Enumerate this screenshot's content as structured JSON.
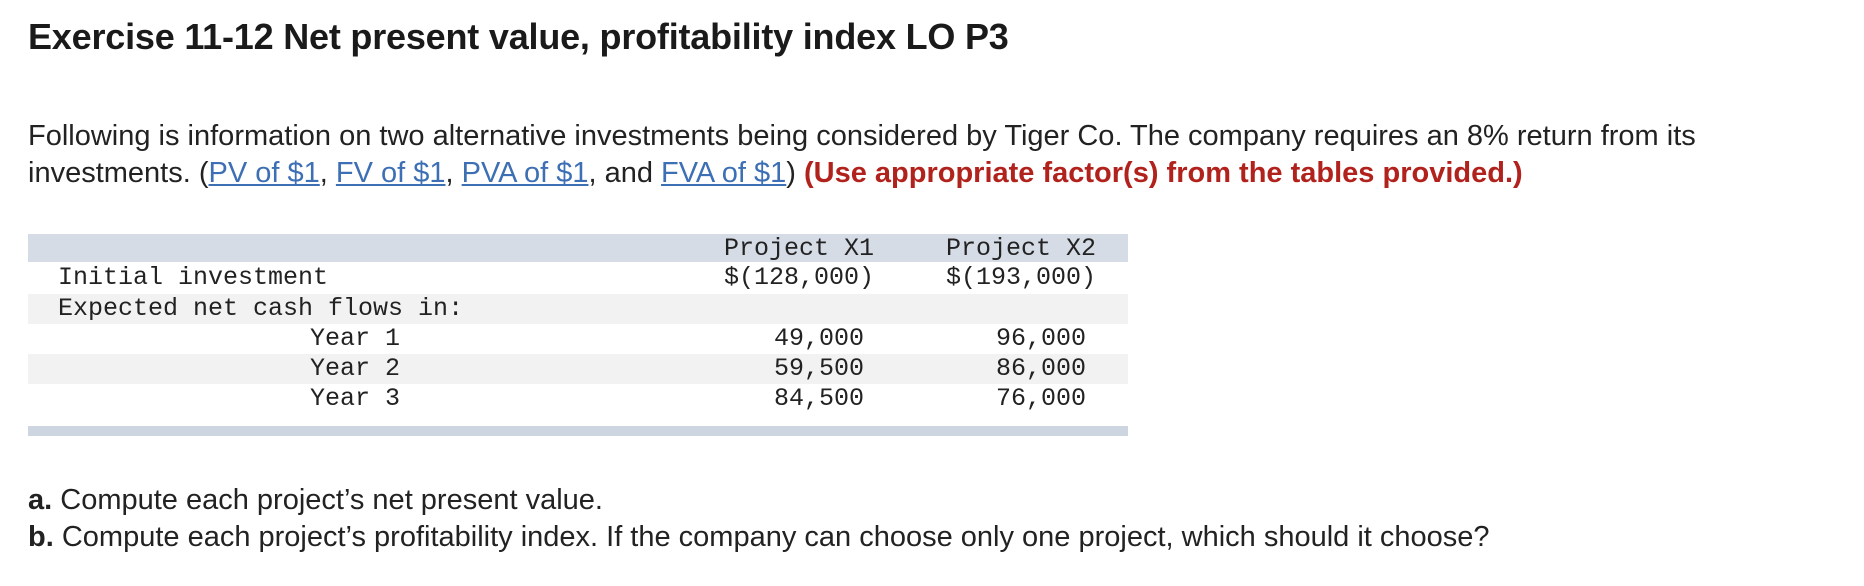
{
  "title": "Exercise 11-12 Net present value, profitability index LO P3",
  "intro": {
    "text_before": "Following is information on two alternative investments being considered by Tiger Co. The company requires an 8% return from its",
    "text_line2_start": "investments. (",
    "links": [
      "PV of $1",
      "FV of $1",
      "PVA of $1",
      "FVA of $1"
    ],
    "sep_comma": ", ",
    "sep_and": ", and ",
    "close_paren": ")",
    "warning": "(Use appropriate factor(s) from the tables provided.)"
  },
  "table": {
    "headers": [
      "Project X1",
      "Project X2"
    ],
    "initial_label": "Initial investment",
    "initial_values": [
      "$(128,000)",
      "$(193,000)"
    ],
    "cash_flows_label": "Expected net cash flows in:",
    "years": [
      {
        "label": "Year 1",
        "x1": "49,000",
        "x2": "96,000"
      },
      {
        "label": "Year 2",
        "x1": "59,500",
        "x2": "86,000"
      },
      {
        "label": "Year 3",
        "x1": "84,500",
        "x2": "76,000"
      }
    ]
  },
  "parts": {
    "a_prefix": "a.",
    "a_text": " Compute each project’s net present value.",
    "b_prefix": "b.",
    "b_text": " Compute each project’s profitability index. If the company can choose only one project, which should it choose?"
  }
}
